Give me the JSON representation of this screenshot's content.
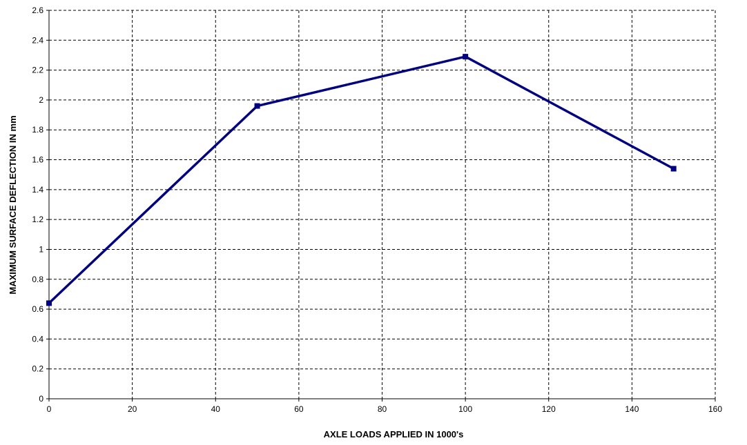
{
  "chart_data": {
    "type": "line",
    "title": "",
    "xlabel": "AXLE LOADS APPLIED IN 1000's",
    "ylabel": "MAXIMUM SURFACE DEFLECTION IN mm",
    "xlim": [
      0,
      160
    ],
    "ylim": [
      0,
      2.6
    ],
    "x_ticks": [
      "0",
      "20",
      "40",
      "60",
      "80",
      "100",
      "120",
      "140",
      "160"
    ],
    "y_ticks": [
      "0",
      "0.2",
      "0.4",
      "0.6",
      "0.8",
      "1",
      "1.2",
      "1.4",
      "1.6",
      "1.8",
      "2",
      "2.2",
      "2.4",
      "2.6"
    ],
    "grid": true,
    "legend": "none",
    "series": [
      {
        "color": "#000080",
        "marker": "square",
        "points": [
          {
            "x": 0,
            "y": 0.64
          },
          {
            "x": 50,
            "y": 1.96
          },
          {
            "x": 100,
            "y": 2.29
          },
          {
            "x": 150,
            "y": 1.54
          }
        ]
      }
    ]
  }
}
